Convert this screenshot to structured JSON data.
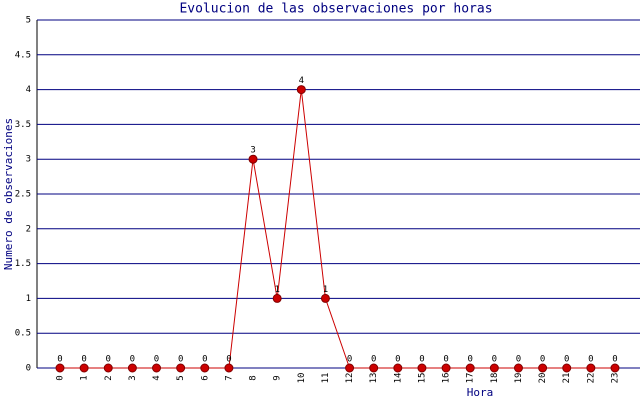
{
  "chart_data": {
    "type": "line",
    "title": "Evolucion de las observaciones por horas",
    "xlabel": "Hora",
    "ylabel": "Numero de observaciones",
    "categories": [
      "0",
      "1",
      "2",
      "3",
      "4",
      "5",
      "6",
      "7",
      "8",
      "9",
      "10",
      "11",
      "12",
      "13",
      "14",
      "15",
      "16",
      "17",
      "18",
      "19",
      "20",
      "21",
      "22",
      "23"
    ],
    "values": [
      0,
      0,
      0,
      0,
      0,
      0,
      0,
      0,
      3,
      1,
      4,
      1,
      0,
      0,
      0,
      0,
      0,
      0,
      0,
      0,
      0,
      0,
      0,
      0
    ],
    "color": "#cc0000",
    "ylim": [
      0,
      5
    ],
    "yticks": [
      0,
      0.5,
      1,
      1.5,
      2,
      2.5,
      3,
      3.5,
      4,
      4.5,
      5
    ],
    "grid": true
  }
}
